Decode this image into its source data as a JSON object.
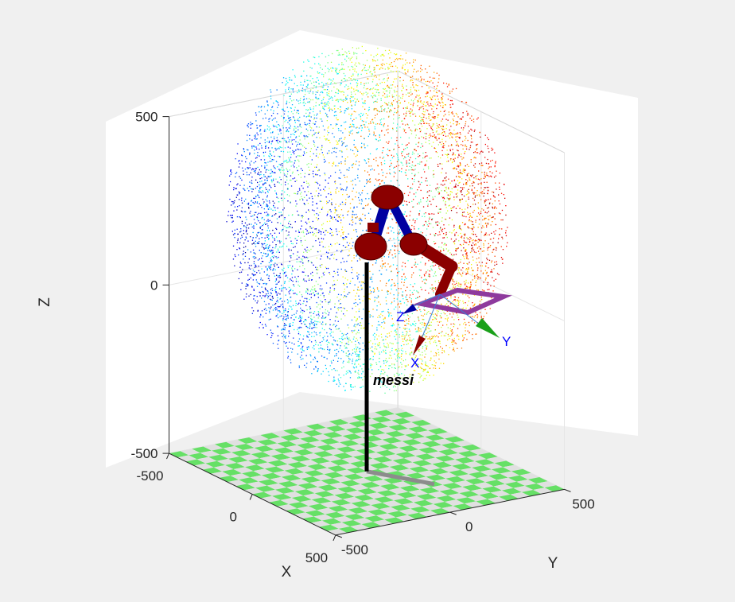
{
  "chart_data": {
    "type": "scatter",
    "plot_style": "3d",
    "xlabel": "X",
    "ylabel": "Y",
    "zlabel": "Z",
    "xlim": [
      -500,
      500
    ],
    "ylim": [
      -500,
      500
    ],
    "zlim": [
      -500,
      500
    ],
    "x_ticks": [
      "-500",
      "0",
      "500"
    ],
    "y_ticks": [
      "-500",
      "0",
      "500"
    ],
    "z_ticks": [
      "-500",
      "0",
      "500"
    ],
    "grid": true,
    "colormap": "jet",
    "workspace_point_cloud": {
      "shape": "sphere",
      "center": [
        0,
        0,
        250
      ],
      "radius": 500,
      "color_by": "z"
    },
    "robot": {
      "name": "messi",
      "link_color": "#8b0000",
      "joint_color": "#0000a0",
      "tool_color": "#8e3a9d",
      "tool_frame_labels": [
        "X",
        "Y",
        "Z"
      ]
    },
    "floor": {
      "pattern": "checkerboard",
      "colors": [
        "#66e066",
        "#e0e0e0"
      ]
    }
  },
  "colors": {
    "figure_bg": "#f0f0f0",
    "axes_bg": "#ffffff",
    "grid": "#e6e6e6",
    "axis_line": "#262626"
  }
}
